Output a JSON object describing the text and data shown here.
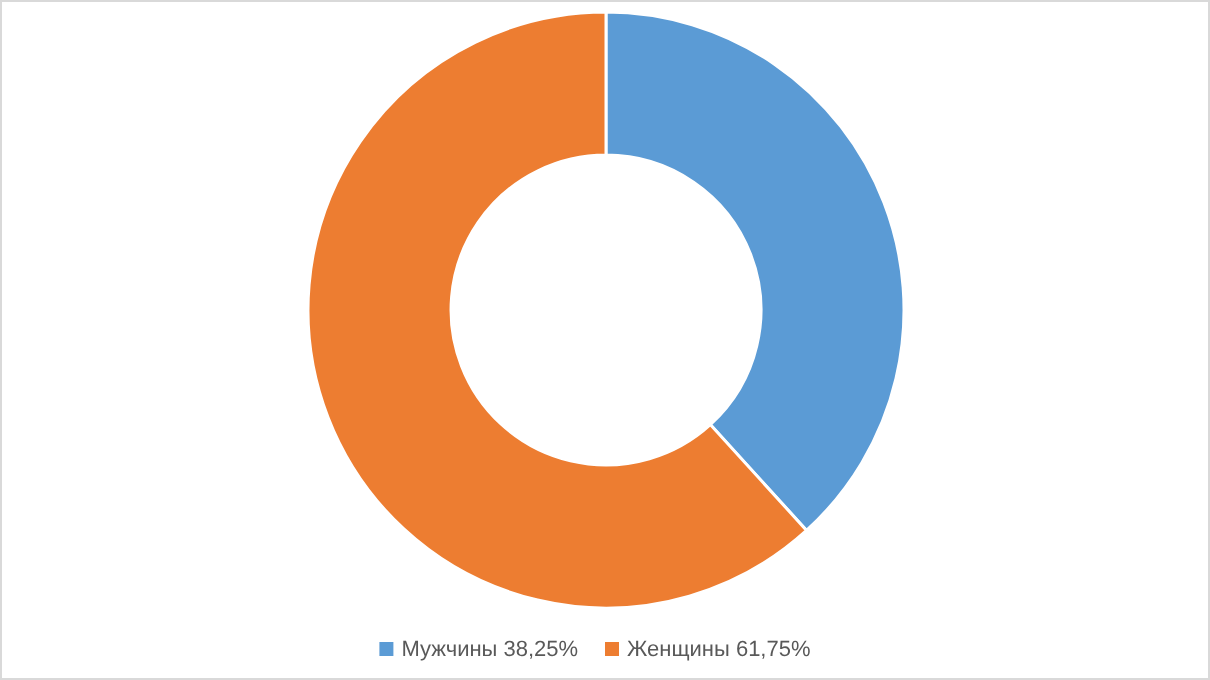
{
  "chart_data": {
    "type": "donut",
    "categories": [
      "Мужчины 38,25%",
      "Женщины 61,75%"
    ],
    "values": [
      38.25,
      61.75
    ],
    "colors": [
      "#5b9bd5",
      "#ed7d31"
    ],
    "legend": "bottom"
  }
}
